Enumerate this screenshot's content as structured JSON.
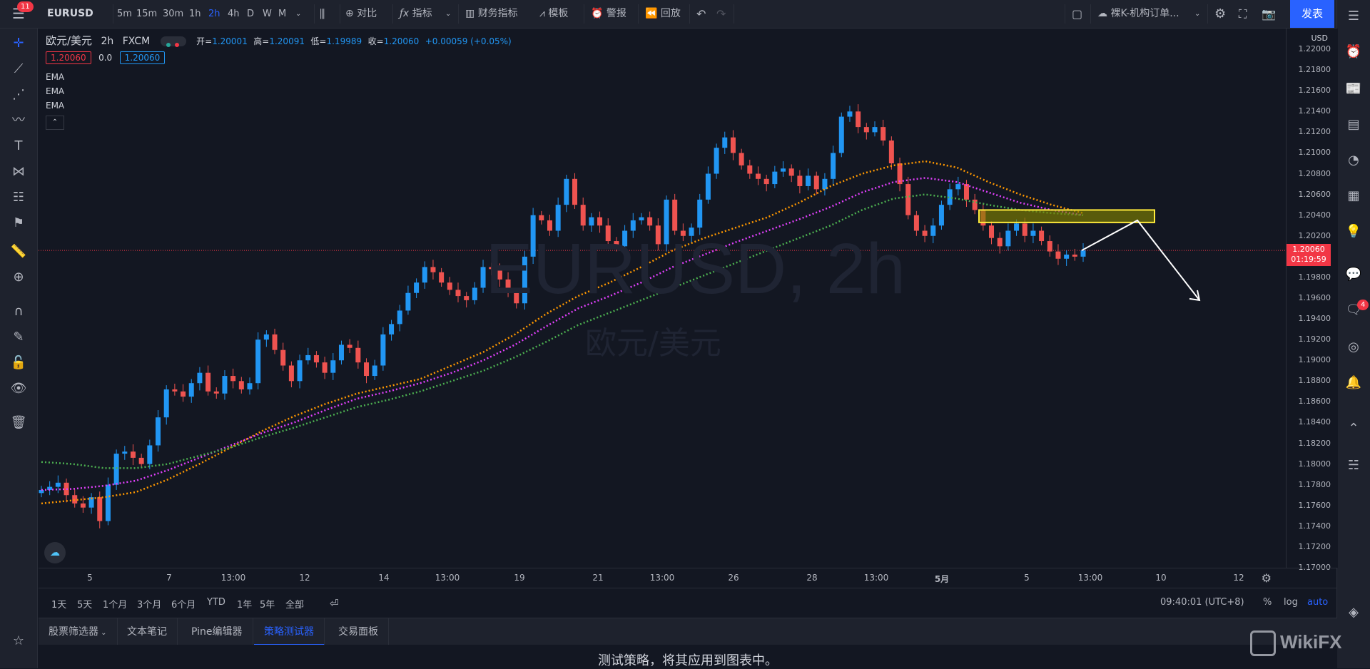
{
  "toolbar": {
    "symbol": "EURUSD",
    "menu_badge": "11",
    "timeframes": [
      "5m",
      "15m",
      "30m",
      "1h",
      "2h",
      "4h",
      "D",
      "W",
      "M"
    ],
    "active_timeframe": "2h",
    "compare_label": "对比",
    "indicators_label": "指标",
    "financials_label": "财务指标",
    "templates_label": "模板",
    "alert_label": "警报",
    "replay_label": "回放",
    "layout_name": "裸K-机构订单...",
    "publish_label": "发表"
  },
  "legend": {
    "symbol_name": "欧元/美元",
    "interval": "2h",
    "exchange": "FXCM",
    "open_label": "开=",
    "open": "1.20001",
    "high_label": "高=",
    "high": "1.20091",
    "low_label": "低=",
    "low": "1.19989",
    "close_label": "收=",
    "close": "1.20060",
    "change": "+0.00059 (+0.05%)",
    "bid": "1.20060",
    "spread": "0.0",
    "ask": "1.20060",
    "indicators": [
      "EMA",
      "EMA",
      "EMA"
    ]
  },
  "watermark": {
    "symbol": "EURUSD, 2h",
    "name": "欧元/美元"
  },
  "price_axis": {
    "currency": "USD",
    "ticks": [
      "1.22000",
      "1.21800",
      "1.21600",
      "1.21400",
      "1.21200",
      "1.21000",
      "1.20800",
      "1.20600",
      "1.20400",
      "1.20200",
      "1.19800",
      "1.19600",
      "1.19400",
      "1.19200",
      "1.19000",
      "1.18800",
      "1.18600",
      "1.18400",
      "1.18200",
      "1.18000",
      "1.17800",
      "1.17600",
      "1.17400",
      "1.17200",
      "1.17000"
    ],
    "current_price": "1.20060",
    "countdown": "01:19:59"
  },
  "time_axis": [
    "5",
    "7",
    "13:00",
    "12",
    "14",
    "13:00",
    "19",
    "21",
    "13:00",
    "26",
    "28",
    "13:00",
    "5月",
    "5",
    "13:00",
    "10",
    "12"
  ],
  "range_bar": {
    "ranges": [
      "1天",
      "5天",
      "1个月",
      "3个月",
      "6个月",
      "YTD",
      "1年",
      "5年",
      "全部"
    ],
    "clock": "09:40:01 (UTC+8)",
    "percent": "%",
    "log": "log",
    "auto": "auto"
  },
  "bottom_panel": {
    "tabs": [
      "股票筛选器",
      "文本笔记",
      "Pine编辑器",
      "策略测试器",
      "交易面板"
    ],
    "active_tab": "策略测试器",
    "message": "测试策略，将其应用到图表中。"
  },
  "right_badge": "4",
  "brand": "WikiFX",
  "chart_data": {
    "type": "candlestick",
    "symbol": "EURUSD",
    "interval": "2h",
    "ylim": [
      1.17,
      1.222
    ],
    "closes": [
      1.1775,
      1.1778,
      1.1782,
      1.177,
      1.1762,
      1.1758,
      1.1768,
      1.1745,
      1.178,
      1.181,
      1.1812,
      1.1806,
      1.18,
      1.1818,
      1.1845,
      1.1872,
      1.187,
      1.1865,
      1.1878,
      1.1888,
      1.187,
      1.1868,
      1.1885,
      1.188,
      1.1872,
      1.1878,
      1.192,
      1.1925,
      1.191,
      1.1895,
      1.188,
      1.19,
      1.1905,
      1.1898,
      1.1888,
      1.19,
      1.1915,
      1.1912,
      1.1898,
      1.1885,
      1.1895,
      1.1925,
      1.1935,
      1.1948,
      1.1965,
      1.1975,
      1.199,
      1.1985,
      1.1975,
      1.1968,
      1.1962,
      1.1958,
      1.197,
      1.199,
      1.1988,
      1.1978,
      1.1965,
      1.1955,
      1.2,
      1.204,
      1.2035,
      1.2025,
      1.205,
      1.2075,
      1.205,
      1.203,
      1.2038,
      1.203,
      1.2015,
      1.201,
      1.2025,
      1.2035,
      1.2038,
      1.203,
      1.2012,
      1.2055,
      1.2025,
      1.202,
      1.2028,
      1.2055,
      1.208,
      1.2105,
      1.2115,
      1.21,
      1.2088,
      1.208,
      1.2075,
      1.207,
      1.2082,
      1.2085,
      1.2078,
      1.2068,
      1.2078,
      1.2065,
      1.2075,
      1.21,
      1.2135,
      1.214,
      1.2125,
      1.212,
      1.2125,
      1.2112,
      1.209,
      1.207,
      1.204,
      1.2025,
      1.202,
      1.203,
      1.205,
      1.2065,
      1.207,
      1.2055,
      1.2045,
      1.203,
      1.2018,
      1.201,
      1.2025,
      1.2032,
      1.202,
      1.2025,
      1.2015,
      1.2005,
      1.1998,
      1.2002,
      1.2,
      1.2006
    ],
    "ema_series": [
      {
        "color": "#ff9800",
        "values": [
          1.1762,
          1.1765,
          1.1768,
          1.1773,
          1.1785,
          1.18,
          1.1816,
          1.1832,
          1.1846,
          1.1858,
          1.1868,
          1.1875,
          1.1882,
          1.1895,
          1.1908,
          1.1925,
          1.1945,
          1.1962,
          1.1975,
          1.199,
          1.2006,
          1.2018,
          1.2028,
          1.2038,
          1.2052,
          1.2068,
          1.208,
          1.2088,
          1.2092,
          1.2086,
          1.2072,
          1.206,
          1.205,
          1.2042
        ]
      },
      {
        "color": "#e040fb",
        "values": [
          1.1775,
          1.1776,
          1.1779,
          1.1784,
          1.1794,
          1.1806,
          1.1818,
          1.183,
          1.184,
          1.1852,
          1.1863,
          1.187,
          1.1878,
          1.1888,
          1.19,
          1.1915,
          1.1933,
          1.195,
          1.1962,
          1.1975,
          1.199,
          1.2002,
          1.2014,
          1.2025,
          1.2036,
          1.2048,
          1.2062,
          1.2072,
          1.2076,
          1.2072,
          1.2062,
          1.2052,
          1.2045,
          1.204
        ]
      },
      {
        "color": "#4caf50",
        "values": [
          1.1802,
          1.18,
          1.1796,
          1.1796,
          1.18,
          1.1808,
          1.1816,
          1.1826,
          1.1835,
          1.1845,
          1.1855,
          1.1862,
          1.187,
          1.188,
          1.189,
          1.1903,
          1.1918,
          1.1934,
          1.1946,
          1.1958,
          1.197,
          1.1982,
          1.1994,
          1.2006,
          1.2018,
          1.203,
          1.2045,
          1.2056,
          1.206,
          1.2056,
          1.205,
          1.2045,
          1.2042,
          1.204
        ]
      }
    ]
  }
}
